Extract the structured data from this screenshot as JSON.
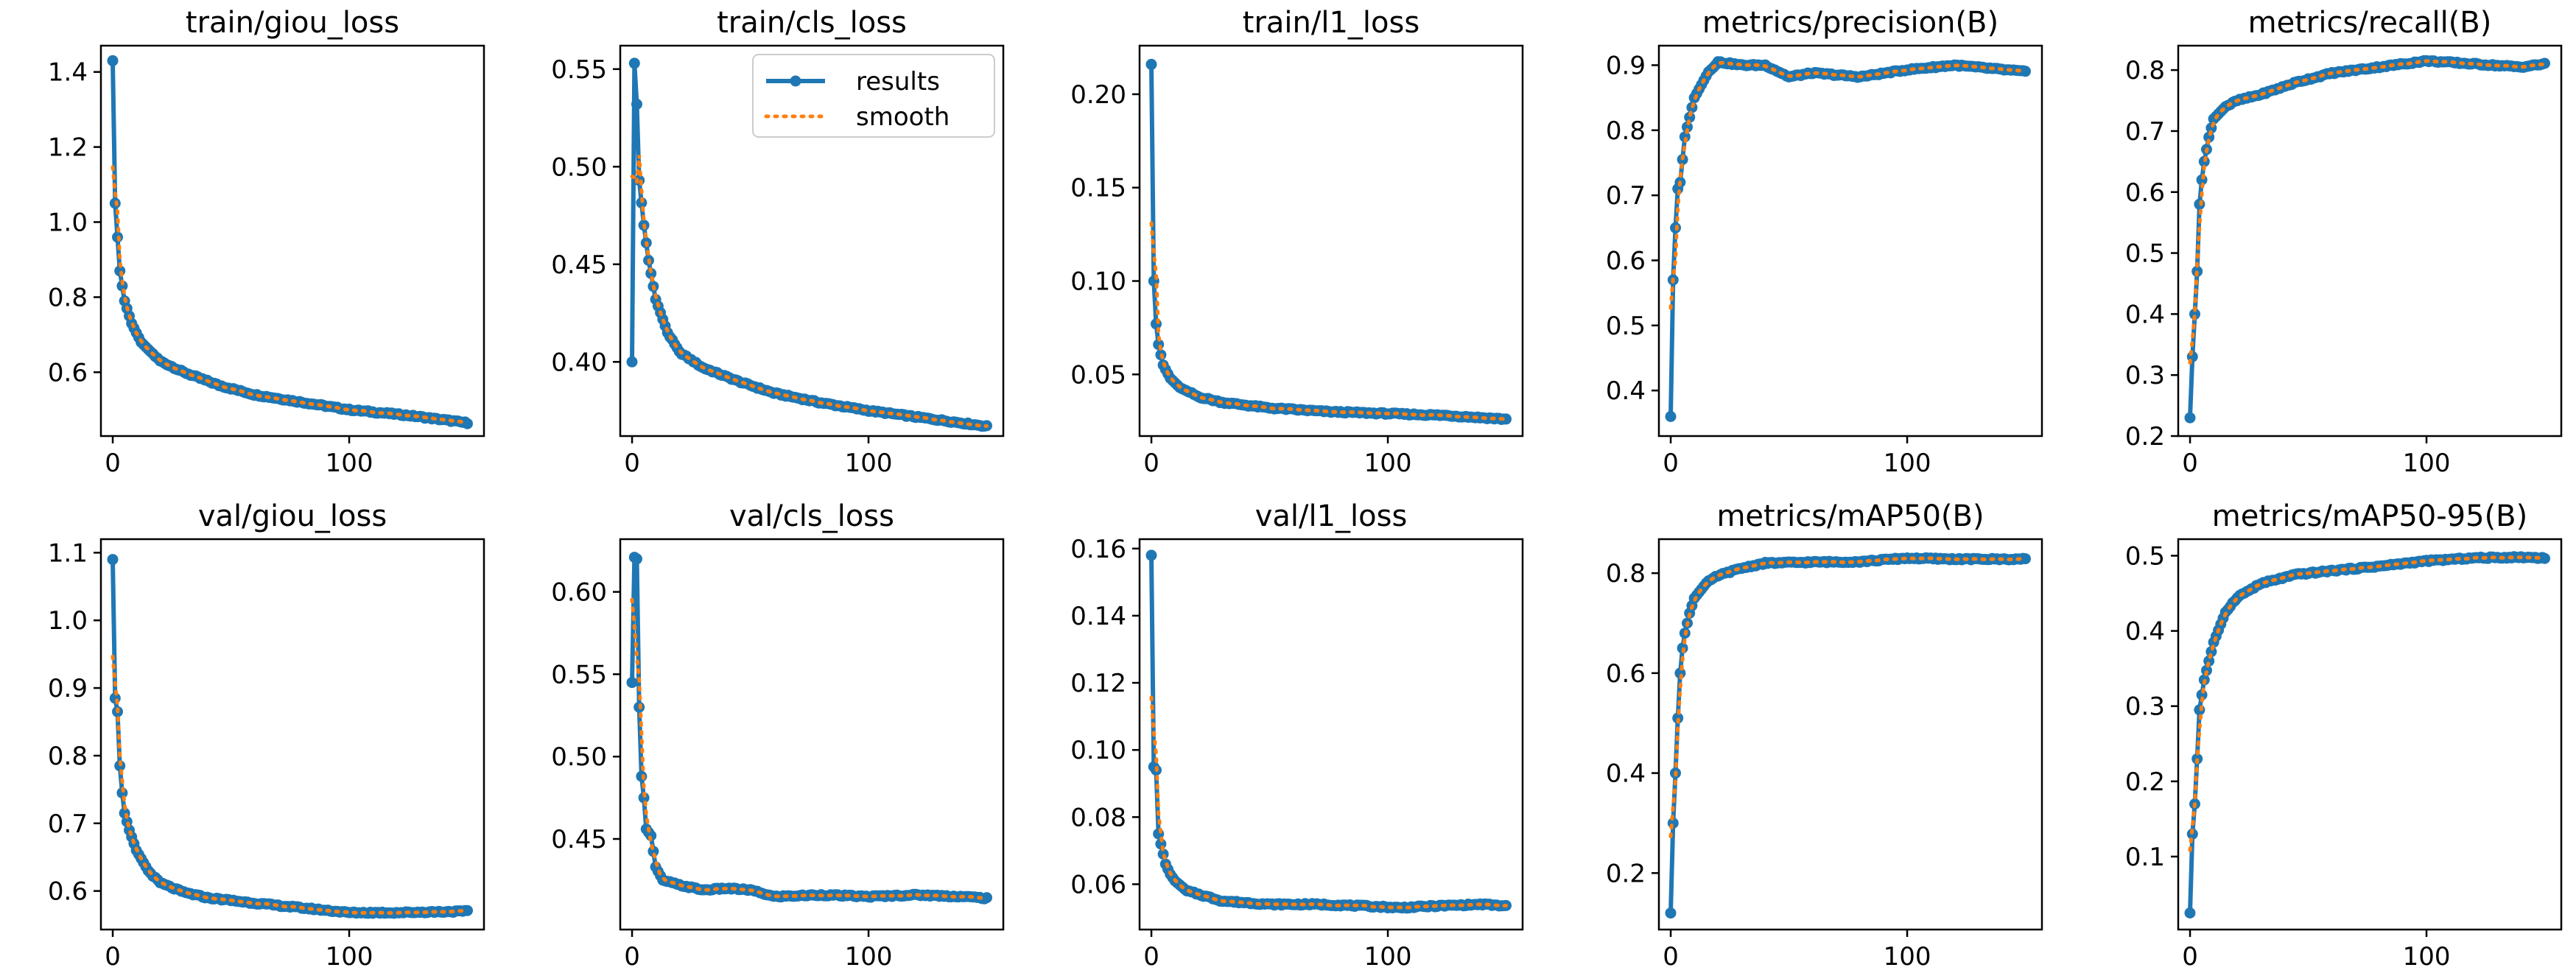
{
  "figure": {
    "legend": {
      "results_label": "results",
      "smooth_label": "smooth"
    },
    "colors": {
      "results": "#1f77b4",
      "smooth": "#ff7f0e",
      "frame": "#000000",
      "background": "#ffffff"
    }
  },
  "chart_data": [
    {
      "type": "line",
      "title": "train/giou_loss",
      "xlabel": "",
      "ylabel": "",
      "xlim": [
        -5,
        157
      ],
      "ylim": [
        0.43,
        1.47
      ],
      "xticks": [
        0,
        100
      ],
      "yticks": [
        0.6,
        0.8,
        1.0,
        1.2,
        1.4
      ],
      "ytick_labels": [
        "0.6",
        "0.8",
        "1.0",
        "1.2",
        "1.4"
      ],
      "epochs": 150,
      "shape": "decay",
      "anchors": [
        [
          0,
          1.43
        ],
        [
          1,
          1.05
        ],
        [
          2,
          0.96
        ],
        [
          3,
          0.87
        ],
        [
          5,
          0.79
        ],
        [
          8,
          0.73
        ],
        [
          12,
          0.68
        ],
        [
          20,
          0.63
        ],
        [
          30,
          0.6
        ],
        [
          45,
          0.565
        ],
        [
          60,
          0.54
        ],
        [
          80,
          0.52
        ],
        [
          100,
          0.5
        ],
        [
          125,
          0.485
        ],
        [
          150,
          0.465
        ]
      ]
    },
    {
      "type": "line",
      "title": "train/cls_loss",
      "xlabel": "",
      "ylabel": "",
      "xlim": [
        -5,
        157
      ],
      "ylim": [
        0.362,
        0.562
      ],
      "xticks": [
        0,
        100
      ],
      "yticks": [
        0.4,
        0.45,
        0.5,
        0.55
      ],
      "ytick_labels": [
        "0.40",
        "0.45",
        "0.50",
        "0.55"
      ],
      "epochs": 150,
      "shape": "decay",
      "legend": "top-right",
      "anchors": [
        [
          0,
          0.4
        ],
        [
          1,
          0.553
        ],
        [
          2,
          0.532
        ],
        [
          3,
          0.493
        ],
        [
          5,
          0.47
        ],
        [
          7,
          0.452
        ],
        [
          10,
          0.432
        ],
        [
          15,
          0.415
        ],
        [
          20,
          0.405
        ],
        [
          30,
          0.397
        ],
        [
          45,
          0.39
        ],
        [
          60,
          0.384
        ],
        [
          80,
          0.379
        ],
        [
          100,
          0.375
        ],
        [
          125,
          0.371
        ],
        [
          150,
          0.367
        ]
      ]
    },
    {
      "type": "line",
      "title": "train/l1_loss",
      "xlabel": "",
      "ylabel": "",
      "xlim": [
        -5,
        157
      ],
      "ylim": [
        0.017,
        0.226
      ],
      "xticks": [
        0,
        100
      ],
      "yticks": [
        0.05,
        0.1,
        0.15,
        0.2
      ],
      "ytick_labels": [
        "0.05",
        "0.10",
        "0.15",
        "0.20"
      ],
      "epochs": 150,
      "shape": "decay",
      "anchors": [
        [
          0,
          0.216
        ],
        [
          1,
          0.1
        ],
        [
          2,
          0.077
        ],
        [
          3,
          0.066
        ],
        [
          5,
          0.055
        ],
        [
          8,
          0.048
        ],
        [
          12,
          0.043
        ],
        [
          20,
          0.038
        ],
        [
          30,
          0.035
        ],
        [
          50,
          0.032
        ],
        [
          75,
          0.03
        ],
        [
          100,
          0.029
        ],
        [
          125,
          0.028
        ],
        [
          150,
          0.026
        ]
      ]
    },
    {
      "type": "line",
      "title": "metrics/precision(B)",
      "xlabel": "",
      "ylabel": "",
      "xlim": [
        -5,
        157
      ],
      "ylim": [
        0.33,
        0.93
      ],
      "xticks": [
        0,
        100
      ],
      "yticks": [
        0.4,
        0.5,
        0.6,
        0.7,
        0.8,
        0.9
      ],
      "ytick_labels": [
        "0.4",
        "0.5",
        "0.6",
        "0.7",
        "0.8",
        "0.9"
      ],
      "epochs": 150,
      "shape": "rise",
      "anchors": [
        [
          0,
          0.36
        ],
        [
          1,
          0.57
        ],
        [
          2,
          0.65
        ],
        [
          3,
          0.71
        ],
        [
          4,
          0.72
        ],
        [
          6,
          0.79
        ],
        [
          8,
          0.82
        ],
        [
          10,
          0.85
        ],
        [
          13,
          0.87
        ],
        [
          16,
          0.89
        ],
        [
          20,
          0.905
        ],
        [
          30,
          0.9
        ],
        [
          40,
          0.9
        ],
        [
          50,
          0.882
        ],
        [
          60,
          0.888
        ],
        [
          80,
          0.882
        ],
        [
          100,
          0.893
        ],
        [
          120,
          0.9
        ],
        [
          135,
          0.895
        ],
        [
          150,
          0.89
        ]
      ]
    },
    {
      "type": "line",
      "title": "metrics/recall(B)",
      "xlabel": "",
      "ylabel": "",
      "xlim": [
        -5,
        157
      ],
      "ylim": [
        0.2,
        0.84
      ],
      "xticks": [
        0,
        100
      ],
      "yticks": [
        0.2,
        0.3,
        0.4,
        0.5,
        0.6,
        0.7,
        0.8
      ],
      "ytick_labels": [
        "0.2",
        "0.3",
        "0.4",
        "0.5",
        "0.6",
        "0.7",
        "0.8"
      ],
      "epochs": 150,
      "shape": "rise",
      "anchors": [
        [
          0,
          0.23
        ],
        [
          1,
          0.33
        ],
        [
          2,
          0.4
        ],
        [
          3,
          0.47
        ],
        [
          4,
          0.58
        ],
        [
          5,
          0.62
        ],
        [
          6,
          0.65
        ],
        [
          8,
          0.69
        ],
        [
          10,
          0.72
        ],
        [
          15,
          0.74
        ],
        [
          20,
          0.75
        ],
        [
          30,
          0.76
        ],
        [
          45,
          0.78
        ],
        [
          60,
          0.795
        ],
        [
          80,
          0.805
        ],
        [
          100,
          0.815
        ],
        [
          120,
          0.81
        ],
        [
          140,
          0.805
        ],
        [
          150,
          0.81
        ]
      ]
    },
    {
      "type": "line",
      "title": "val/giou_loss",
      "xlabel": "",
      "ylabel": "",
      "xlim": [
        -5,
        157
      ],
      "ylim": [
        0.543,
        1.12
      ],
      "xticks": [
        0,
        100
      ],
      "yticks": [
        0.6,
        0.7,
        0.8,
        0.9,
        1.0,
        1.1
      ],
      "ytick_labels": [
        "0.6",
        "0.7",
        "0.8",
        "0.9",
        "1.0",
        "1.1"
      ],
      "epochs": 150,
      "shape": "decay",
      "anchors": [
        [
          0,
          1.09
        ],
        [
          1,
          0.885
        ],
        [
          2,
          0.865
        ],
        [
          3,
          0.785
        ],
        [
          4,
          0.745
        ],
        [
          5,
          0.715
        ],
        [
          7,
          0.69
        ],
        [
          10,
          0.66
        ],
        [
          15,
          0.63
        ],
        [
          20,
          0.612
        ],
        [
          30,
          0.598
        ],
        [
          40,
          0.59
        ],
        [
          60,
          0.582
        ],
        [
          80,
          0.575
        ],
        [
          100,
          0.568
        ],
        [
          120,
          0.568
        ],
        [
          150,
          0.57
        ]
      ]
    },
    {
      "type": "line",
      "title": "val/cls_loss",
      "xlabel": "",
      "ylabel": "",
      "xlim": [
        -5,
        157
      ],
      "ylim": [
        0.395,
        0.632
      ],
      "xticks": [
        0,
        100
      ],
      "yticks": [
        0.45,
        0.5,
        0.55,
        0.6
      ],
      "ytick_labels": [
        "0.45",
        "0.50",
        "0.55",
        "0.60"
      ],
      "epochs": 150,
      "shape": "decay",
      "anchors": [
        [
          0,
          0.545
        ],
        [
          1,
          0.621
        ],
        [
          2,
          0.62
        ],
        [
          3,
          0.53
        ],
        [
          4,
          0.488
        ],
        [
          5,
          0.475
        ],
        [
          6,
          0.456
        ],
        [
          8,
          0.452
        ],
        [
          10,
          0.433
        ],
        [
          13,
          0.425
        ],
        [
          20,
          0.422
        ],
        [
          30,
          0.419
        ],
        [
          40,
          0.42
        ],
        [
          50,
          0.419
        ],
        [
          60,
          0.415
        ],
        [
          80,
          0.416
        ],
        [
          100,
          0.415
        ],
        [
          120,
          0.416
        ],
        [
          140,
          0.415
        ],
        [
          150,
          0.414
        ]
      ]
    },
    {
      "type": "line",
      "title": "val/l1_loss",
      "xlabel": "",
      "ylabel": "",
      "xlim": [
        -5,
        157
      ],
      "ylim": [
        0.0465,
        0.1628
      ],
      "xticks": [
        0,
        100
      ],
      "yticks": [
        0.06,
        0.08,
        0.1,
        0.12,
        0.14,
        0.16
      ],
      "ytick_labels": [
        "0.06",
        "0.08",
        "0.10",
        "0.12",
        "0.14",
        "0.16"
      ],
      "epochs": 150,
      "shape": "decay",
      "anchors": [
        [
          0,
          0.158
        ],
        [
          1,
          0.095
        ],
        [
          2,
          0.094
        ],
        [
          3,
          0.075
        ],
        [
          4,
          0.072
        ],
        [
          6,
          0.066
        ],
        [
          8,
          0.063
        ],
        [
          10,
          0.061
        ],
        [
          15,
          0.058
        ],
        [
          20,
          0.057
        ],
        [
          30,
          0.055
        ],
        [
          50,
          0.054
        ],
        [
          70,
          0.054
        ],
        [
          90,
          0.0535
        ],
        [
          105,
          0.053
        ],
        [
          120,
          0.0535
        ],
        [
          140,
          0.054
        ],
        [
          150,
          0.0535
        ]
      ]
    },
    {
      "type": "line",
      "title": "metrics/mAP50(B)",
      "xlabel": "",
      "ylabel": "",
      "xlim": [
        -5,
        157
      ],
      "ylim": [
        0.087,
        0.868
      ],
      "xticks": [
        0,
        100
      ],
      "yticks": [
        0.2,
        0.4,
        0.6,
        0.8
      ],
      "ytick_labels": [
        "0.2",
        "0.4",
        "0.6",
        "0.8"
      ],
      "epochs": 150,
      "shape": "rise",
      "anchors": [
        [
          0,
          0.12
        ],
        [
          1,
          0.3
        ],
        [
          2,
          0.4
        ],
        [
          3,
          0.51
        ],
        [
          4,
          0.6
        ],
        [
          5,
          0.65
        ],
        [
          6,
          0.68
        ],
        [
          8,
          0.72
        ],
        [
          10,
          0.75
        ],
        [
          15,
          0.78
        ],
        [
          20,
          0.795
        ],
        [
          30,
          0.81
        ],
        [
          40,
          0.82
        ],
        [
          60,
          0.822
        ],
        [
          80,
          0.823
        ],
        [
          100,
          0.83
        ],
        [
          120,
          0.828
        ],
        [
          150,
          0.828
        ]
      ]
    },
    {
      "type": "line",
      "title": "metrics/mAP50-95(B)",
      "xlabel": "",
      "ylabel": "",
      "xlim": [
        -5,
        157
      ],
      "ylim": [
        0.003,
        0.522
      ],
      "xticks": [
        0,
        100
      ],
      "yticks": [
        0.1,
        0.2,
        0.3,
        0.4,
        0.5
      ],
      "ytick_labels": [
        "0.1",
        "0.2",
        "0.3",
        "0.4",
        "0.5"
      ],
      "epochs": 150,
      "shape": "rise",
      "anchors": [
        [
          0,
          0.025
        ],
        [
          1,
          0.13
        ],
        [
          2,
          0.17
        ],
        [
          3,
          0.23
        ],
        [
          4,
          0.295
        ],
        [
          5,
          0.315
        ],
        [
          6,
          0.335
        ],
        [
          8,
          0.36
        ],
        [
          10,
          0.385
        ],
        [
          15,
          0.425
        ],
        [
          20,
          0.445
        ],
        [
          30,
          0.463
        ],
        [
          45,
          0.475
        ],
        [
          60,
          0.48
        ],
        [
          80,
          0.486
        ],
        [
          100,
          0.493
        ],
        [
          120,
          0.497
        ],
        [
          140,
          0.498
        ],
        [
          150,
          0.497
        ]
      ]
    }
  ]
}
